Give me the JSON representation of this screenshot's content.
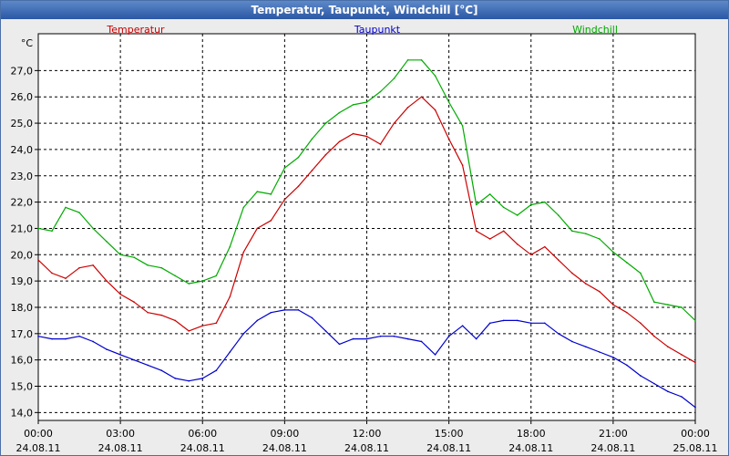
{
  "window": {
    "title": "Temperatur, Taupunkt, Windchill [°C]"
  },
  "chart_data": {
    "type": "line",
    "title": "Temperatur, Taupunkt, Windchill [°C]",
    "ylabel": "°C",
    "ylim": [
      13.7,
      28.4
    ],
    "yticks": [
      14,
      15,
      16,
      17,
      18,
      19,
      20,
      21,
      22,
      23,
      24,
      25,
      26,
      27
    ],
    "ytick_labels": [
      "14,0",
      "15,0",
      "16,0",
      "17,0",
      "18,0",
      "19,0",
      "20,0",
      "21,0",
      "22,0",
      "23,0",
      "24,0",
      "25,0",
      "26,0",
      "27,0"
    ],
    "xlim": [
      0,
      24
    ],
    "xticks": [
      0,
      3,
      6,
      9,
      12,
      15,
      18,
      21,
      24
    ],
    "xtick_times": [
      "00:00",
      "03:00",
      "06:00",
      "09:00",
      "12:00",
      "15:00",
      "18:00",
      "21:00",
      "00:00"
    ],
    "xtick_dates": [
      "24.08.11",
      "24.08.11",
      "24.08.11",
      "24.08.11",
      "24.08.11",
      "24.08.11",
      "24.08.11",
      "24.08.11",
      "25.08.11"
    ],
    "grid": true,
    "legend_position": "top",
    "series": [
      {
        "name": "Temperatur",
        "color": "#cc0000",
        "x": [
          0,
          0.5,
          1,
          1.5,
          2,
          2.5,
          3,
          3.5,
          4,
          4.5,
          5,
          5.5,
          6,
          6.5,
          7,
          7.5,
          8,
          8.5,
          9,
          9.5,
          10,
          10.5,
          11,
          11.5,
          12,
          12.5,
          13,
          13.5,
          14,
          14.5,
          15,
          15.5,
          16,
          16.5,
          17,
          17.5,
          18,
          18.5,
          19,
          19.5,
          20,
          20.5,
          21,
          21.5,
          22,
          22.5,
          23,
          23.5,
          24
        ],
        "values": [
          19.8,
          19.3,
          19.1,
          19.5,
          19.6,
          19.0,
          18.5,
          18.2,
          17.8,
          17.7,
          17.5,
          17.1,
          17.3,
          17.4,
          18.4,
          20.1,
          21.0,
          21.3,
          22.1,
          22.6,
          23.2,
          23.8,
          24.3,
          24.6,
          24.5,
          24.2,
          25.0,
          25.6,
          26.0,
          25.5,
          24.4,
          23.4,
          20.9,
          20.6,
          20.9,
          20.4,
          20.0,
          20.3,
          19.8,
          19.3,
          18.9,
          18.6,
          18.1,
          17.8,
          17.4,
          16.9,
          16.5,
          16.2,
          15.9
        ]
      },
      {
        "name": "Taupunkt",
        "color": "#0000cc",
        "x": [
          0,
          0.5,
          1,
          1.5,
          2,
          2.5,
          3,
          3.5,
          4,
          4.5,
          5,
          5.5,
          6,
          6.5,
          7,
          7.5,
          8,
          8.5,
          9,
          9.5,
          10,
          10.5,
          11,
          11.5,
          12,
          12.5,
          13,
          13.5,
          14,
          14.5,
          15,
          15.5,
          16,
          16.5,
          17,
          17.5,
          18,
          18.5,
          19,
          19.5,
          20,
          20.5,
          21,
          21.5,
          22,
          22.5,
          23,
          23.5,
          24
        ],
        "values": [
          16.9,
          16.8,
          16.8,
          16.9,
          16.7,
          16.4,
          16.2,
          16.0,
          15.8,
          15.6,
          15.3,
          15.2,
          15.3,
          15.6,
          16.3,
          17.0,
          17.5,
          17.8,
          17.9,
          17.9,
          17.6,
          17.1,
          16.6,
          16.8,
          16.8,
          16.9,
          16.9,
          16.8,
          16.7,
          16.2,
          16.9,
          17.3,
          16.8,
          17.4,
          17.5,
          17.5,
          17.4,
          17.4,
          17.0,
          16.7,
          16.5,
          16.3,
          16.1,
          15.8,
          15.4,
          15.1,
          14.8,
          14.6,
          14.2
        ]
      },
      {
        "name": "Windchill",
        "color": "#00aa00",
        "x": [
          0,
          0.5,
          1,
          1.5,
          2,
          2.5,
          3,
          3.5,
          4,
          4.5,
          5,
          5.5,
          6,
          6.5,
          7,
          7.5,
          8,
          8.5,
          9,
          9.5,
          10,
          10.5,
          11,
          11.5,
          12,
          12.5,
          13,
          13.5,
          14,
          14.5,
          15,
          15.5,
          16,
          16.5,
          17,
          17.5,
          18,
          18.5,
          19,
          19.5,
          20,
          20.5,
          21,
          21.5,
          22,
          22.5,
          23,
          23.5,
          24
        ],
        "values": [
          21.0,
          20.9,
          21.8,
          21.6,
          21.0,
          20.5,
          20.0,
          19.9,
          19.6,
          19.5,
          19.2,
          18.9,
          19.0,
          19.2,
          20.3,
          21.8,
          22.4,
          22.3,
          23.3,
          23.7,
          24.4,
          25.0,
          25.4,
          25.7,
          25.8,
          26.2,
          26.7,
          27.4,
          27.4,
          26.8,
          25.8,
          24.9,
          21.9,
          22.3,
          21.8,
          21.5,
          21.9,
          22.0,
          21.5,
          20.9,
          20.8,
          20.6,
          20.1,
          19.7,
          19.3,
          18.2,
          18.1,
          18.0,
          17.5
        ]
      }
    ]
  }
}
